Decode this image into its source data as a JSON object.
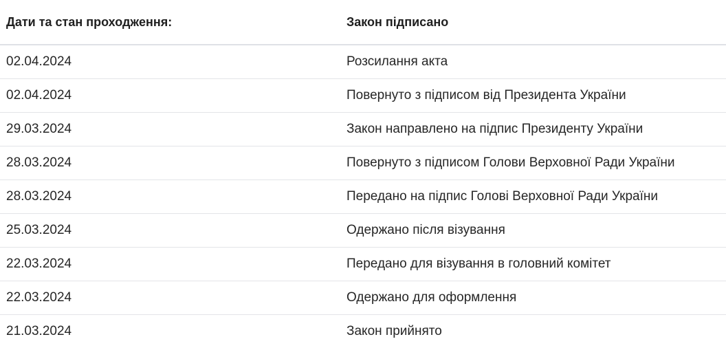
{
  "header": {
    "dates_label": "Дати та стан проходження:",
    "status_label": "Закон підписано"
  },
  "rows": [
    {
      "date": "02.04.2024",
      "event": "Розсилання акта"
    },
    {
      "date": "02.04.2024",
      "event": "Повернуто з підписом від Президента України"
    },
    {
      "date": "29.03.2024",
      "event": "Закон направлено на підпис Президенту України"
    },
    {
      "date": "28.03.2024",
      "event": "Повернуто з підписом Голови Верховної Ради України"
    },
    {
      "date": "28.03.2024",
      "event": "Передано на підпис Голові Верховної Ради України"
    },
    {
      "date": "25.03.2024",
      "event": "Одержано після візування"
    },
    {
      "date": "22.03.2024",
      "event": "Передано для візування в головний комітет"
    },
    {
      "date": "22.03.2024",
      "event": "Одержано для оформлення"
    },
    {
      "date": "21.03.2024",
      "event": "Закон прийнято"
    }
  ]
}
